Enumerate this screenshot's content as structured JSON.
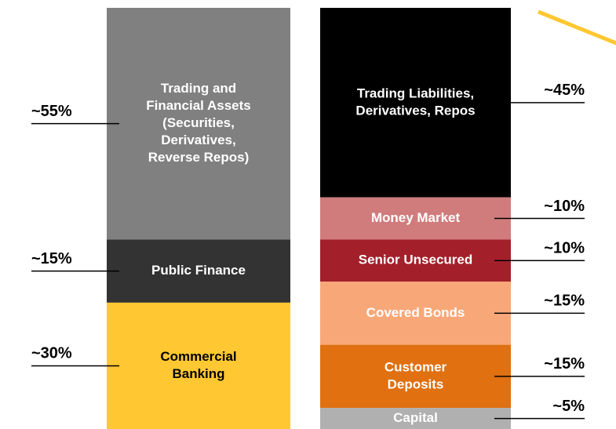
{
  "columns": [
    {
      "segments": [
        {
          "label": [
            "Trading and",
            "Financial Assets",
            "(Securities,",
            "Derivatives,",
            "Reverse Repos)"
          ],
          "value": 55,
          "value_label": "~55%",
          "color": "#808080",
          "text_color": "#ffffff"
        },
        {
          "label": [
            "Public Finance"
          ],
          "value": 15,
          "value_label": "~15%",
          "color": "#333333",
          "text_color": "#ffffff"
        },
        {
          "label": [
            "Commercial",
            "Banking"
          ],
          "value": 30,
          "value_label": "~30%",
          "color": "#ffc832",
          "text_color": "#000000"
        }
      ]
    },
    {
      "segments": [
        {
          "label": [
            "Trading Liabilities,",
            "Derivatives, Repos"
          ],
          "value": 45,
          "value_label": "~45%",
          "color": "#000000",
          "text_color": "#ffffff"
        },
        {
          "label": [
            "Money Market"
          ],
          "value": 10,
          "value_label": "~10%",
          "color": "#d07c7c",
          "text_color": "#ffffff"
        },
        {
          "label": [
            "Senior Unsecured"
          ],
          "value": 10,
          "value_label": "~10%",
          "color": "#a3202a",
          "text_color": "#ffffff"
        },
        {
          "label": [
            "Covered Bonds"
          ],
          "value": 15,
          "value_label": "~15%",
          "color": "#f8a878",
          "text_color": "#ffffff"
        },
        {
          "label": [
            "Customer",
            "Deposits"
          ],
          "value": 15,
          "value_label": "~15%",
          "color": "#e07010",
          "text_color": "#ffffff"
        },
        {
          "label": [
            "Capital"
          ],
          "value": 5,
          "value_label": "~5%",
          "color": "#b0b0b0",
          "text_color": "#ffffff"
        }
      ]
    }
  ]
}
